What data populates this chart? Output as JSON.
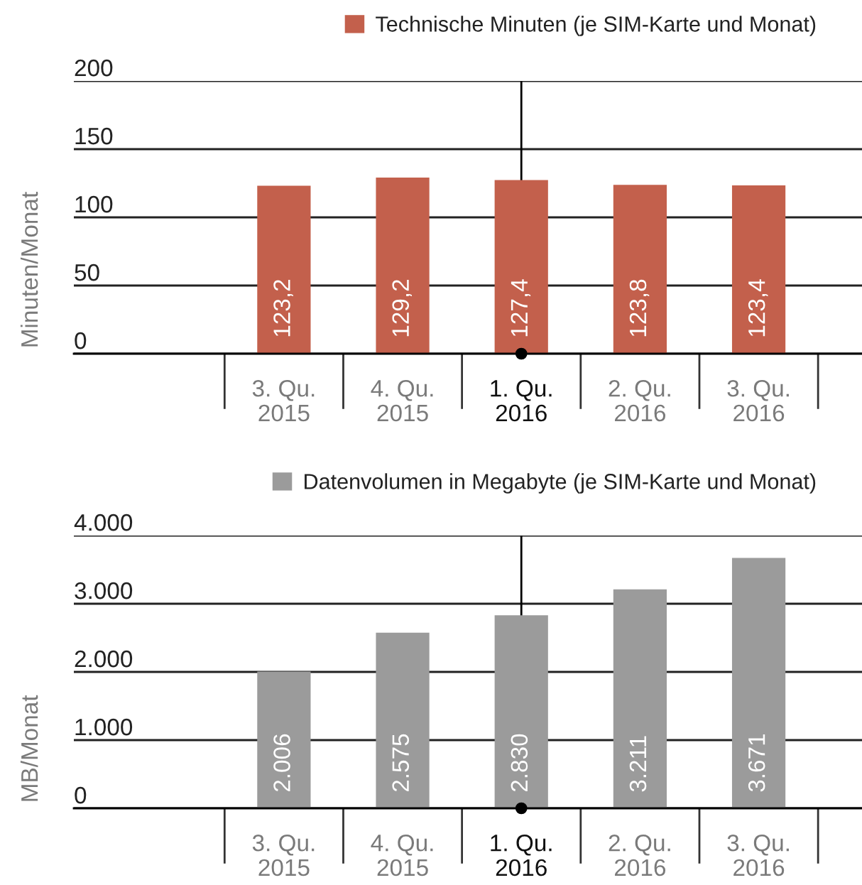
{
  "chart_data": [
    {
      "type": "bar",
      "categories": [
        "3. Qu.\n2015",
        "4. Qu.\n2015",
        "1. Qu.\n2016",
        "2. Qu.\n2016",
        "3. Qu.\n2016"
      ],
      "series": [
        {
          "name": "Technische Minuten (je SIM-Karte und Monat)",
          "color": "#c3604c",
          "values": [
            123.2,
            129.2,
            127.4,
            123.8,
            123.4
          ],
          "value_labels": [
            "123,2",
            "129,2",
            "127,4",
            "123,8",
            "123,4"
          ]
        }
      ],
      "ylabel": "Minuten/Monat",
      "ylim": [
        0,
        200
      ],
      "yticks": [
        0,
        50,
        100,
        150,
        200
      ],
      "grid": "y",
      "legend": "top right",
      "ref_lines": [
        {
          "axis": "x",
          "value": "1. Qu.\n2016",
          "color": "#000000"
        }
      ]
    },
    {
      "type": "bar",
      "categories": [
        "3. Qu.\n2015",
        "4. Qu.\n2015",
        "1. Qu.\n2016",
        "2. Qu.\n2016",
        "3. Qu.\n2016"
      ],
      "series": [
        {
          "name": "Datenvolumen in Megabyte (je SIM-Karte und Monat)",
          "color": "#9b9b9b",
          "values": [
            2006,
            2575,
            2830,
            3211,
            3671
          ],
          "value_labels": [
            "2.006",
            "2.575",
            "2.830",
            "3.211",
            "3.671"
          ]
        }
      ],
      "ylabel": "MB/Monat",
      "ylim": [
        0,
        4000
      ],
      "yticks": [
        0,
        {
          "value": 1000,
          "label": "1.000"
        },
        {
          "value": 2000,
          "label": "2.000"
        },
        {
          "value": 3000,
          "label": "3.000"
        },
        {
          "value": 4000,
          "label": "4.000"
        }
      ],
      "grid": "y",
      "legend": "top right",
      "ref_lines": [
        {
          "axis": "x",
          "value": "1. Qu.\n2016",
          "color": "#000000"
        }
      ]
    }
  ]
}
